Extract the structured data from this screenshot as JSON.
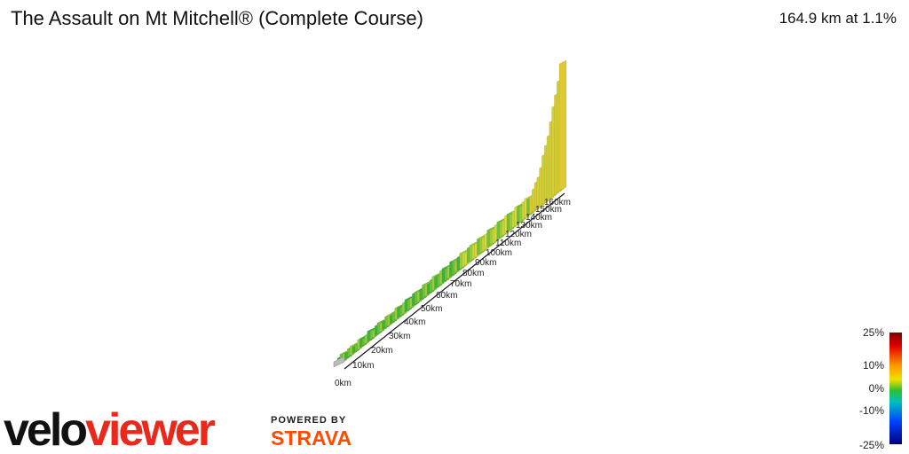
{
  "header": {
    "title": "The Assault on Mt Mitchell® (Complete Course)",
    "summary": "164.9 km at 1.1%"
  },
  "distance_labels": [
    "0km",
    "10km",
    "20km",
    "30km",
    "40km",
    "50km",
    "60km",
    "70km",
    "80km",
    "90km",
    "100km",
    "110km",
    "120km",
    "130km",
    "140km",
    "150km",
    "160km"
  ],
  "gradient_legend": {
    "labels": [
      "25%",
      "10%",
      "0%",
      "-10%",
      "-25%"
    ]
  },
  "branding": {
    "logo_a": "velo",
    "logo_b": "viewer",
    "powered": "POWERED BY",
    "strava": "STRAVA"
  }
}
